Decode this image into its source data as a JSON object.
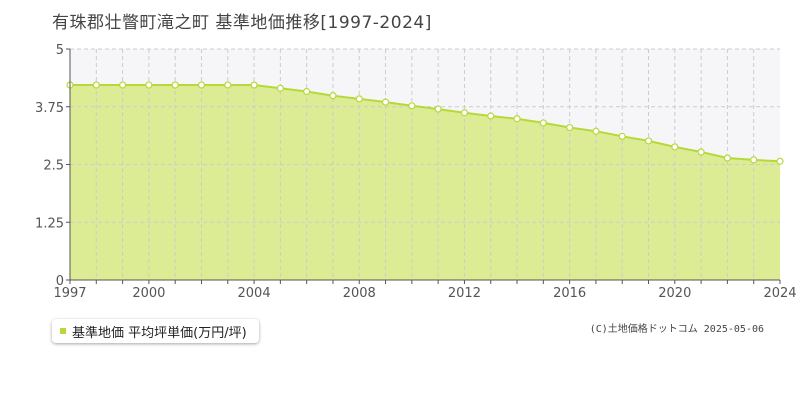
{
  "title": "有珠郡壮瞥町滝之町 基準地価推移[1997-2024]",
  "legend": {
    "label": "基準地価 平均坪単価(万円/坪)",
    "color": "#b5d93a"
  },
  "copyright": "(C)土地価格ドットコム 2025-05-06",
  "colors": {
    "area_fill": "#dcec94",
    "line": "#b5d93a",
    "plot_bg": "#f6f6f9",
    "grid": "#cccccc"
  },
  "chart_data": {
    "type": "area",
    "title": "有珠郡壮瞥町滝之町 基準地価推移[1997-2024]",
    "xlabel": "",
    "ylabel": "",
    "xlim": [
      1997,
      2024
    ],
    "ylim": [
      0,
      5
    ],
    "x_ticks": [
      1997,
      2000,
      2004,
      2008,
      2012,
      2016,
      2020,
      2024
    ],
    "y_ticks": [
      "0",
      "1.25",
      "2.5",
      "3.75",
      "5"
    ],
    "grid": true,
    "legend_position": "bottom-left",
    "series": [
      {
        "name": "基準地価 平均坪単価(万円/坪)",
        "x": [
          1997,
          1998,
          1999,
          2000,
          2001,
          2002,
          2003,
          2004,
          2005,
          2006,
          2007,
          2008,
          2009,
          2010,
          2011,
          2012,
          2013,
          2014,
          2015,
          2016,
          2017,
          2018,
          2019,
          2020,
          2021,
          2022,
          2023,
          2024
        ],
        "values": [
          4.22,
          4.22,
          4.22,
          4.22,
          4.22,
          4.22,
          4.22,
          4.22,
          4.15,
          4.08,
          3.99,
          3.92,
          3.85,
          3.77,
          3.7,
          3.62,
          3.55,
          3.49,
          3.4,
          3.3,
          3.22,
          3.11,
          3.01,
          2.88,
          2.77,
          2.64,
          2.6,
          2.57
        ]
      }
    ]
  }
}
